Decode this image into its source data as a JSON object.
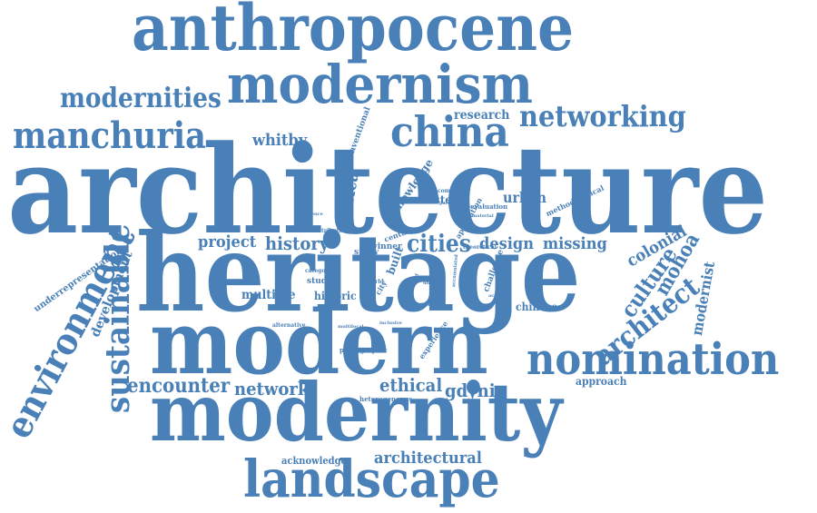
{
  "cloud": {
    "color": "#4a80b8",
    "words": [
      "architecture",
      "heritage",
      "modern",
      "modernity",
      "anthropocene",
      "modernism",
      "landscape",
      "nomination",
      "china",
      "manchuria",
      "networking",
      "modernities",
      "environment",
      "sustainable",
      "encounter",
      "network",
      "ethical",
      "gdynia",
      "cities",
      "design",
      "missing",
      "history",
      "project",
      "architect",
      "culture",
      "mohoa",
      "colonial",
      "modernist",
      "whitby",
      "research",
      "urban",
      "africa",
      "architectural",
      "multiple",
      "historic",
      "chinese",
      "approach",
      "development",
      "acknowledge",
      "western",
      "knowledge",
      "conventional",
      "underrepresentation",
      "studies",
      "study",
      "century",
      "winner",
      "built",
      "challenge",
      "application",
      "methodological",
      "reevaluation",
      "photographic",
      "experience",
      "heterogeneous",
      "alternative",
      "complexity",
      "contribute",
      "influence",
      "category",
      "world",
      "city",
      "theoretical",
      "paradox",
      "material",
      "emergence",
      "inclusive",
      "unique",
      "period",
      "activities",
      "coherent",
      "multilocal",
      "accumulated"
    ]
  }
}
